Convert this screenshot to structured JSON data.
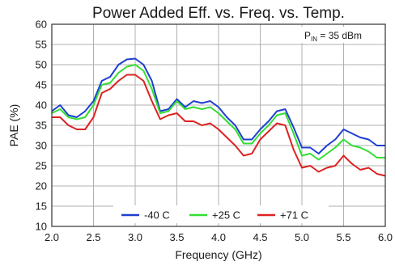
{
  "chart_data": {
    "type": "line",
    "title": "Power Added Eff. vs. Freq. vs. Temp.",
    "xlabel": "Frequency (GHz)",
    "ylabel": "PAE (%)",
    "annotation": {
      "main": "P",
      "sub": "IN",
      "rest": " = 35 dBm"
    },
    "xlim": [
      2.0,
      6.0
    ],
    "ylim": [
      10,
      60
    ],
    "xticks": [
      "2.0",
      "2.5",
      "3.0",
      "3.5",
      "4.0",
      "4.5",
      "5.0",
      "5.5",
      "6.0"
    ],
    "yticks": [
      "10",
      "15",
      "20",
      "25",
      "30",
      "35",
      "40",
      "45",
      "50",
      "55",
      "60"
    ],
    "grid": true,
    "legend_position": "bottom-center",
    "x": [
      2.0,
      2.1,
      2.2,
      2.3,
      2.4,
      2.5,
      2.6,
      2.7,
      2.8,
      2.9,
      3.0,
      3.1,
      3.2,
      3.3,
      3.4,
      3.5,
      3.6,
      3.7,
      3.8,
      3.9,
      4.0,
      4.1,
      4.2,
      4.3,
      4.4,
      4.5,
      4.6,
      4.7,
      4.8,
      4.9,
      5.0,
      5.1,
      5.2,
      5.3,
      5.4,
      5.5,
      5.6,
      5.7,
      5.8,
      5.9,
      6.0
    ],
    "series": [
      {
        "name": "-40 C",
        "color": "#1f3fd0",
        "values": [
          38.5,
          40,
          37.5,
          37,
          38.5,
          41,
          46,
          47,
          50,
          51.3,
          51.5,
          50,
          46,
          38.5,
          39,
          41.5,
          39.5,
          41,
          40.5,
          41,
          39.5,
          37,
          35,
          31.5,
          31.5,
          34,
          36,
          38.5,
          39,
          34.5,
          29.5,
          29.5,
          28,
          30,
          31.5,
          34,
          33,
          32,
          31.5,
          30,
          30
        ]
      },
      {
        "name": "+25 C",
        "color": "#33dd33",
        "values": [
          38,
          39,
          37,
          36.5,
          37,
          40,
          45,
          45.5,
          48,
          49.5,
          50,
          48.5,
          44,
          38,
          38.5,
          41,
          39,
          39.5,
          39,
          39.5,
          38,
          36,
          34,
          30.5,
          30.5,
          33,
          35,
          37.5,
          38,
          33,
          27.5,
          28,
          26.5,
          28,
          29.5,
          31.5,
          30,
          29.5,
          28.5,
          27,
          27
        ]
      },
      {
        "name": "+71 C",
        "color": "#dd2222",
        "values": [
          37,
          37,
          35,
          34,
          34,
          37,
          43,
          44,
          46,
          47.5,
          47.5,
          46,
          41,
          36.5,
          37.5,
          38,
          36,
          36,
          35,
          35.5,
          34,
          32,
          30,
          27.5,
          28,
          31.5,
          33.5,
          35.5,
          35,
          29,
          24.5,
          25,
          23.5,
          24.5,
          25,
          27.5,
          25.5,
          24,
          24.5,
          23,
          22.5
        ]
      }
    ]
  }
}
